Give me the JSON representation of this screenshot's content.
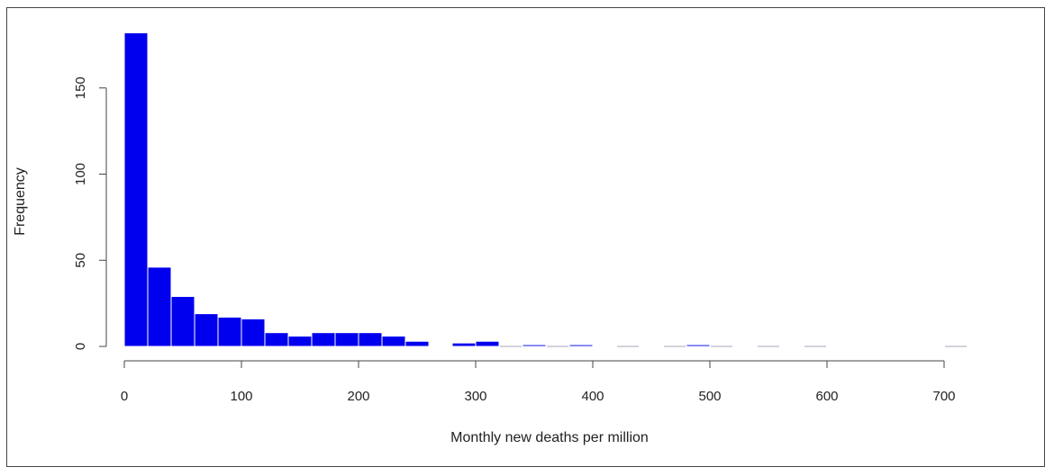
{
  "chart_data": {
    "type": "bar",
    "title": "",
    "xlabel": "Monthly new deaths per million",
    "ylabel": "Frequency",
    "bin_width": 20,
    "bins": [
      {
        "start": 0,
        "end": 20,
        "count": 182
      },
      {
        "start": 20,
        "end": 40,
        "count": 46
      },
      {
        "start": 40,
        "end": 60,
        "count": 29
      },
      {
        "start": 60,
        "end": 80,
        "count": 19
      },
      {
        "start": 80,
        "end": 100,
        "count": 17
      },
      {
        "start": 100,
        "end": 120,
        "count": 16
      },
      {
        "start": 120,
        "end": 140,
        "count": 8
      },
      {
        "start": 140,
        "end": 160,
        "count": 6
      },
      {
        "start": 160,
        "end": 180,
        "count": 8
      },
      {
        "start": 180,
        "end": 200,
        "count": 8
      },
      {
        "start": 200,
        "end": 220,
        "count": 8
      },
      {
        "start": 220,
        "end": 240,
        "count": 6
      },
      {
        "start": 240,
        "end": 260,
        "count": 3
      },
      {
        "start": 260,
        "end": 280,
        "count": 0
      },
      {
        "start": 280,
        "end": 300,
        "count": 2
      },
      {
        "start": 300,
        "end": 320,
        "count": 3
      },
      {
        "start": 320,
        "end": 340,
        "count": 0
      },
      {
        "start": 340,
        "end": 360,
        "count": 1
      },
      {
        "start": 360,
        "end": 380,
        "count": 0
      },
      {
        "start": 380,
        "end": 400,
        "count": 1
      },
      {
        "start": 400,
        "end": 420,
        "count": 0
      },
      {
        "start": 420,
        "end": 440,
        "count": 0
      },
      {
        "start": 440,
        "end": 460,
        "count": 0
      },
      {
        "start": 460,
        "end": 480,
        "count": 0
      },
      {
        "start": 480,
        "end": 500,
        "count": 1
      },
      {
        "start": 500,
        "end": 520,
        "count": 0
      },
      {
        "start": 520,
        "end": 540,
        "count": 0
      },
      {
        "start": 540,
        "end": 560,
        "count": 0
      },
      {
        "start": 560,
        "end": 580,
        "count": 0
      },
      {
        "start": 580,
        "end": 600,
        "count": 0
      },
      {
        "start": 600,
        "end": 620,
        "count": 0
      },
      {
        "start": 620,
        "end": 640,
        "count": 0
      },
      {
        "start": 640,
        "end": 660,
        "count": 0
      },
      {
        "start": 660,
        "end": 680,
        "count": 0
      },
      {
        "start": 680,
        "end": 700,
        "count": 0
      },
      {
        "start": 700,
        "end": 720,
        "count": 0
      }
    ],
    "empty_bin_ranges": [
      [
        320,
        340
      ],
      [
        360,
        380
      ],
      [
        420,
        440
      ],
      [
        460,
        480
      ],
      [
        500,
        520
      ],
      [
        540,
        560
      ],
      [
        580,
        600
      ],
      [
        700,
        720
      ]
    ],
    "xlim": [
      0,
      720
    ],
    "ylim": [
      0,
      182
    ],
    "x_ticks": [
      0,
      100,
      200,
      300,
      400,
      500,
      600,
      700
    ],
    "y_ticks": [
      0,
      50,
      100,
      150
    ],
    "grid": false,
    "legend": "none",
    "colors": {
      "bar_fill": "#0000EE",
      "bar_border": "#ffffff",
      "empty_bin": "#D3D3DE",
      "axis": "#444444"
    }
  }
}
